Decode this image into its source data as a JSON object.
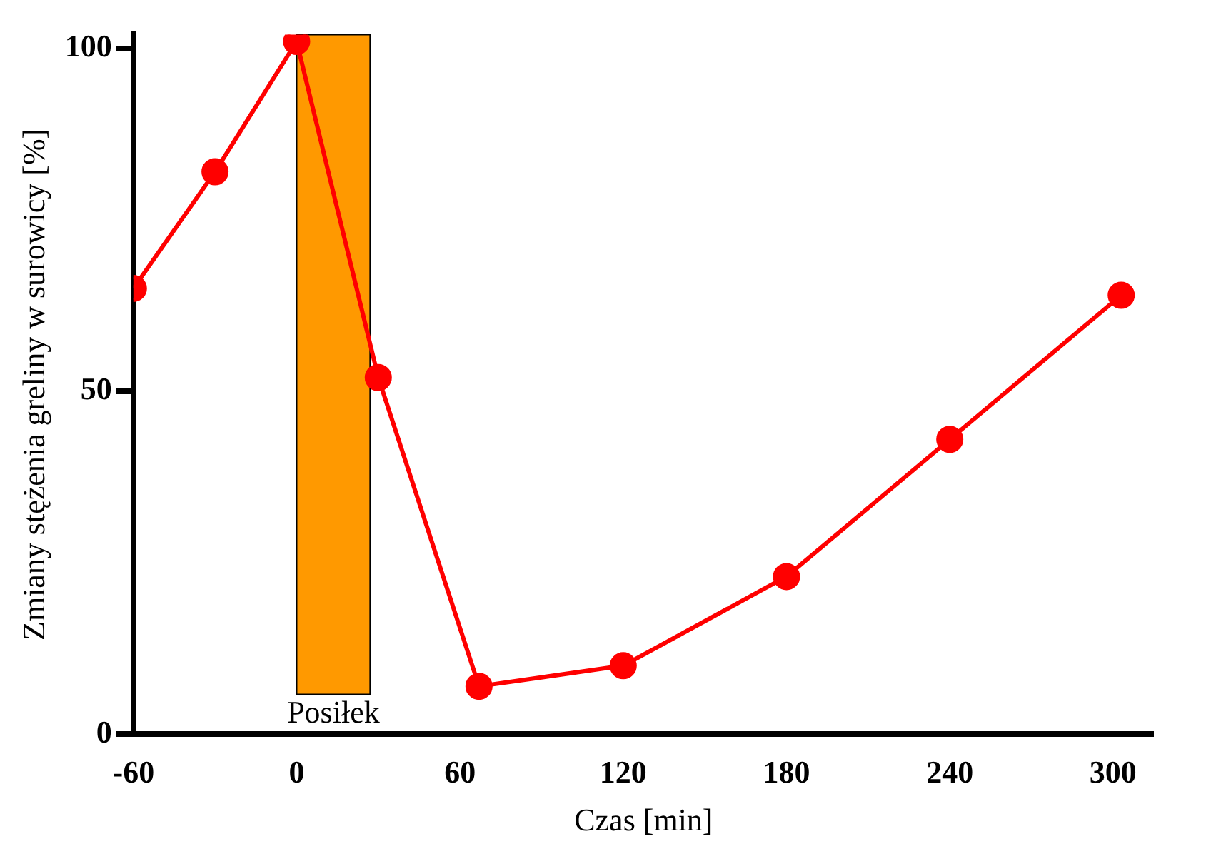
{
  "chart_data": {
    "type": "line",
    "xlabel": "Czas [min]",
    "ylabel": "Zmiany stężenia greliny w surowicy [%]",
    "x": [
      -60,
      -30,
      0,
      30,
      67,
      120,
      180,
      240,
      303
    ],
    "series": [
      {
        "color": "#ff0000",
        "values": [
          65,
          82,
          101,
          52,
          7,
          10,
          23,
          43,
          64
        ]
      }
    ],
    "xlim": [
      -60,
      315
    ],
    "xticks": [
      -60,
      0,
      60,
      120,
      180,
      240,
      300
    ],
    "ylim": [
      0,
      102
    ],
    "yticks": [
      0,
      50,
      100
    ],
    "bands": [
      {
        "axis": "x",
        "from": 0,
        "to": 27,
        "label": "Posiłek",
        "color": "#ff9900"
      }
    ],
    "marker": "circle",
    "line_style": "solid",
    "grid": false,
    "legend": false
  }
}
